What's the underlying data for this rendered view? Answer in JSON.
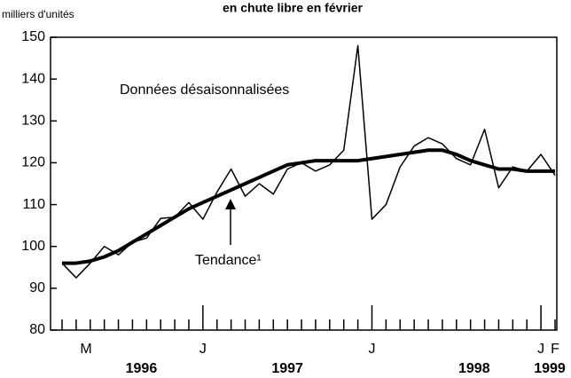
{
  "chart_data": {
    "type": "line",
    "title": "en chute libre en février",
    "y_label": "milliers d'unités",
    "categories": [
      "M",
      null,
      null,
      null,
      null,
      null,
      null,
      null,
      null,
      null,
      "J",
      null,
      null,
      null,
      null,
      null,
      null,
      null,
      null,
      null,
      null,
      null,
      "J",
      null,
      null,
      null,
      null,
      null,
      null,
      null,
      null,
      null,
      null,
      null,
      "J",
      "F"
    ],
    "year_labels": [
      "1996",
      "1997",
      "1998",
      "1999"
    ],
    "series": [
      {
        "name": "Données désaisonnalisées",
        "color": "#000000",
        "values": [
          96,
          92.5,
          96,
          100,
          98,
          101,
          102,
          106.7,
          107,
          110.5,
          106.5,
          113,
          118.5,
          112,
          115,
          112.5,
          118.5,
          120,
          118,
          119.5,
          123,
          148,
          106.5,
          110,
          119,
          124,
          126,
          124.5,
          121,
          119.5,
          128,
          114,
          119,
          118,
          122,
          117
        ]
      },
      {
        "name": "Tendance¹",
        "color": "#000000",
        "values": [
          96,
          96,
          96.5,
          97.5,
          99,
          101,
          103,
          105,
          107,
          109,
          110.5,
          112,
          113.5,
          115,
          116.5,
          118,
          119.5,
          120,
          120.5,
          120.5,
          120.5,
          120.5,
          121,
          121.5,
          122,
          122.5,
          123,
          123,
          122,
          120.5,
          119.5,
          118.5,
          118.5,
          118,
          118,
          118
        ]
      }
    ],
    "ylim": [
      80,
      150
    ],
    "yticks": [
      80,
      90,
      100,
      110,
      120,
      130,
      140,
      150
    ]
  }
}
